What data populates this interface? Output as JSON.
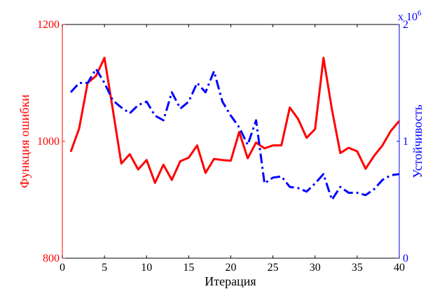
{
  "chart_data": {
    "type": "line",
    "title": "",
    "xlabel": "Итерация",
    "ylabel_left": "Функция ошибки",
    "ylabel_right": "Устойчивость",
    "xlim": [
      0,
      40
    ],
    "ylim_left": [
      800,
      1200
    ],
    "ylim_right": [
      0,
      2000000
    ],
    "x_ticks": [
      "0",
      "5",
      "10",
      "15",
      "20",
      "25",
      "30",
      "35",
      "40"
    ],
    "y_left_ticks": [
      "800",
      "1000",
      "1200"
    ],
    "y_right_ticks": [
      "0",
      "1",
      "2"
    ],
    "y_right_multiplier": {
      "base": "x 10",
      "exponent": "6"
    },
    "grid": false,
    "legend": "none",
    "colors": {
      "left_axis": "#ff0000",
      "right_axis": "#0000ff",
      "frame": "#000000"
    },
    "series": [
      {
        "axis": "left",
        "style": "solid",
        "color": "#ff0000",
        "x": [
          1,
          2,
          3,
          4,
          5,
          6,
          7,
          8,
          9,
          10,
          11,
          12,
          13,
          14,
          15,
          16,
          17,
          18,
          19,
          20,
          21,
          22,
          23,
          24,
          25,
          26,
          27,
          28,
          29,
          30,
          31,
          32,
          33,
          34,
          35,
          36,
          37,
          38,
          39,
          40
        ],
        "values": [
          982,
          1022,
          1100,
          1112,
          1143,
          1054,
          962,
          978,
          952,
          968,
          929,
          960,
          934,
          966,
          972,
          993,
          946,
          970,
          968,
          967,
          1016,
          971,
          998,
          988,
          993,
          993,
          1058,
          1038,
          1006,
          1021,
          1143,
          1055,
          980,
          989,
          983,
          953,
          975,
          993,
          1018,
          1035
        ]
      },
      {
        "axis": "right",
        "style": "dashdot",
        "color": "#0000ff",
        "x": [
          1,
          2,
          3,
          4,
          5,
          6,
          7,
          8,
          9,
          10,
          11,
          12,
          13,
          14,
          15,
          16,
          17,
          18,
          19,
          20,
          21,
          22,
          23,
          24,
          25,
          26,
          27,
          28,
          29,
          30,
          31,
          32,
          33,
          34,
          35,
          36,
          37,
          38,
          39,
          40
        ],
        "values": [
          1420000,
          1500000,
          1500000,
          1620000,
          1500000,
          1350000,
          1290000,
          1240000,
          1310000,
          1340000,
          1220000,
          1180000,
          1420000,
          1280000,
          1340000,
          1500000,
          1420000,
          1600000,
          1340000,
          1220000,
          1120000,
          970000,
          1180000,
          640000,
          690000,
          700000,
          610000,
          600000,
          570000,
          640000,
          720000,
          500000,
          610000,
          560000,
          560000,
          540000,
          590000,
          670000,
          710000,
          720000
        ]
      }
    ]
  }
}
